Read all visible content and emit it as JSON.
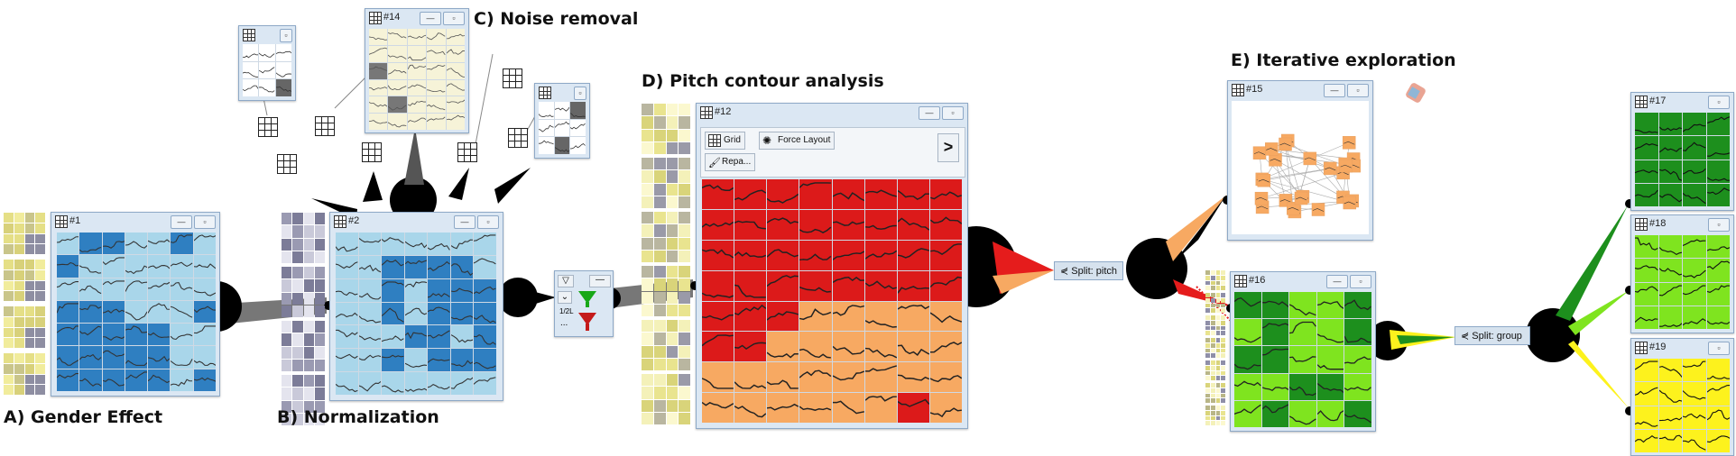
{
  "labels": {
    "a": "A) Gender Effect",
    "b": "B) Normalization",
    "c": "C) Noise removal",
    "d": "D) Pitch contour analysis",
    "e": "E) Iterative exploration"
  },
  "windows": {
    "w1": "#1",
    "w2": "#2",
    "w12": "#12",
    "w14": "#14",
    "w15": "#15",
    "w16": "#16",
    "w17": "#17",
    "w18": "#18",
    "w19": "#19"
  },
  "toolbar": {
    "grid_label": "Grid",
    "force_label": "Force Layout",
    "repaint_label": "Repa...",
    "next_label": ">"
  },
  "filter_panel": {
    "title": "...",
    "value": "1/2L",
    "more": "..."
  },
  "splits": {
    "pitch": "Split: pitch",
    "group": "Split: group"
  },
  "colors": {
    "blue_dark": "#2f7fc1",
    "blue_light": "#a9d6ea",
    "red": "#dc1a1a",
    "orange": "#f7a962",
    "green_dark": "#1d8f1d",
    "green_light": "#7fe41f",
    "yellow": "#fdf21d"
  }
}
